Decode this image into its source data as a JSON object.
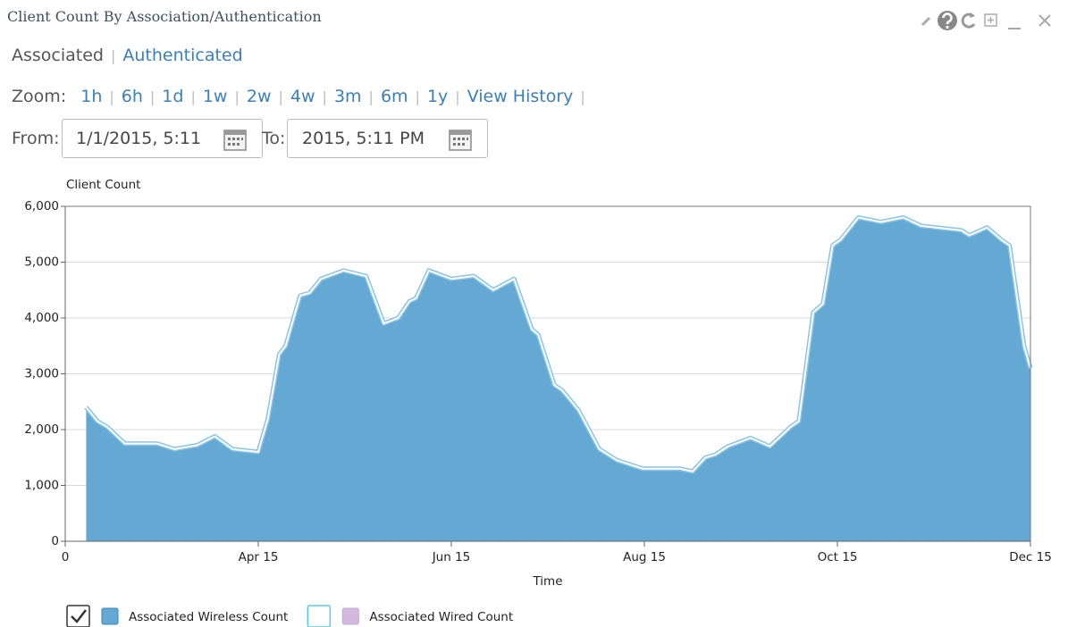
{
  "header": {
    "title": "Client Count By Association/Authentication"
  },
  "tabs": [
    "Associated",
    "Authenticated"
  ],
  "zoom": {
    "label": "Zoom:",
    "links": [
      "1h",
      "6h",
      "1d",
      "1w",
      "2w",
      "4w",
      "3m",
      "6m",
      "1y",
      "View History"
    ]
  },
  "range": {
    "from_label": "From:",
    "from_value": "1/1/2015, 5:11",
    "to_label": "To:",
    "to_value": "2015, 5:11 PM"
  },
  "chart_data": {
    "type": "area",
    "y_label": "Client Count",
    "x_label": "Time",
    "x": [
      1.3,
      2,
      2.6,
      3.7,
      5.7,
      6.8,
      8.2,
      9.3,
      10.4,
      12,
      12.6,
      13.3,
      13.7,
      14.6,
      15.2,
      15.9,
      17.3,
      18.7,
      19.8,
      20.7,
      21.4,
      21.8,
      22.6,
      24,
      25.4,
      26.6,
      27.9,
      29,
      29.4,
      30.4,
      30.9,
      31.9,
      33.2,
      34.3,
      35.9,
      38.2,
      39,
      39.8,
      40.4,
      41.2,
      42.6,
      43.8,
      45.1,
      45.6,
      46.5,
      47.1,
      47.7,
      48.2,
      49.3,
      50.7,
      52.1,
      53.2,
      55.7,
      56.2,
      57.3,
      58.2,
      58.7,
      59.6,
      60
    ],
    "series": [
      {
        "name": "Associated Wireless Count",
        "color": "#64a9d3",
        "values": [
          2400,
          2150,
          2050,
          1750,
          1750,
          1650,
          1720,
          1880,
          1650,
          1600,
          2200,
          3350,
          3500,
          4400,
          4450,
          4700,
          4850,
          4750,
          3900,
          4000,
          4300,
          4350,
          4850,
          4700,
          4750,
          4500,
          4700,
          3800,
          3700,
          2800,
          2700,
          2350,
          1650,
          1450,
          1300,
          1300,
          1250,
          1500,
          1550,
          1700,
          1850,
          1700,
          2050,
          2150,
          4100,
          4250,
          5300,
          5400,
          5800,
          5720,
          5800,
          5650,
          5570,
          5480,
          5620,
          5400,
          5300,
          3500,
          3100
        ]
      },
      {
        "name": "Associated Wired Count",
        "color": "#d4b8e0"
      }
    ],
    "xlim": [
      0,
      60
    ],
    "xticks": [
      0,
      {
        "value": 12,
        "label": "Apr 15"
      },
      {
        "value": 24,
        "label": "Jun 15"
      },
      {
        "value": 36,
        "label": "Aug 15"
      },
      {
        "value": 48,
        "label": "Oct 15"
      },
      {
        "value": 60,
        "label": "Dec 15"
      }
    ],
    "ylim": [
      0,
      6000
    ],
    "yticks": [
      0,
      {
        "value": 1000,
        "label": "1,000"
      },
      {
        "value": 2000,
        "label": "2,000"
      },
      {
        "value": 3000,
        "label": "3,000"
      },
      {
        "value": 4000,
        "label": "4,000"
      },
      {
        "value": 5000,
        "label": "5,000"
      },
      {
        "value": 6000,
        "label": "6,000"
      }
    ],
    "grid": true
  }
}
